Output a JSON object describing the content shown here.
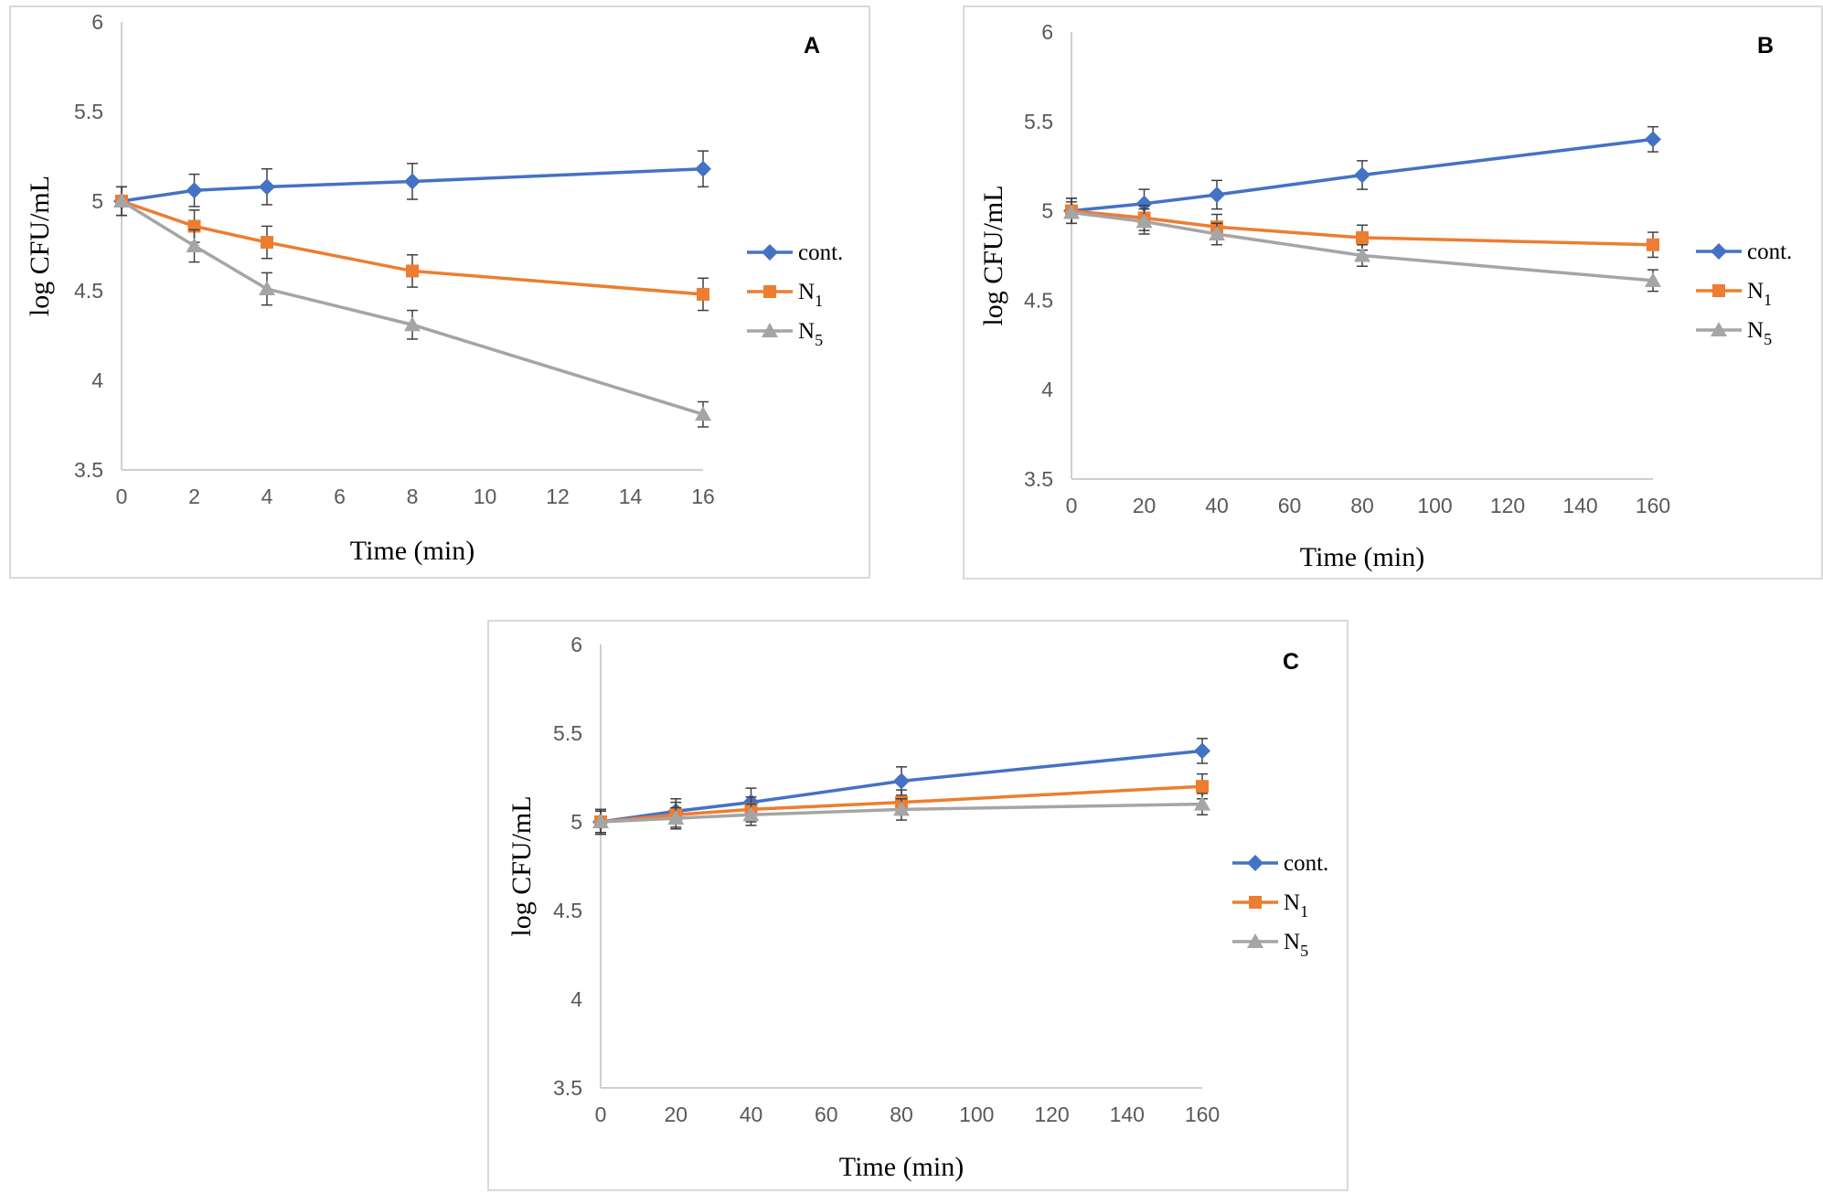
{
  "chart_data": [
    {
      "type": "line",
      "panel_label": "A",
      "xlabel": "Time (min)",
      "ylabel": "log CFU/mL",
      "ylim": [
        3.5,
        6
      ],
      "yticks": [
        "3.5",
        "4",
        "4.5",
        "5",
        "5.5",
        "6"
      ],
      "xticks": [
        "0",
        "2",
        "4",
        "6",
        "8",
        "10",
        "12",
        "14",
        "16"
      ],
      "xlim": [
        0,
        16
      ],
      "legend_position": "right",
      "grid": false,
      "series": [
        {
          "name": "cont.",
          "color": "#4472c4",
          "marker": "diamond",
          "x": [
            0,
            2,
            4,
            8,
            16
          ],
          "values": [
            5.0,
            5.06,
            5.08,
            5.11,
            5.18
          ],
          "error": [
            0.08,
            0.09,
            0.1,
            0.1,
            0.1
          ]
        },
        {
          "name": "N",
          "sub": "1",
          "color": "#ed7d31",
          "marker": "square",
          "x": [
            0,
            2,
            4,
            8,
            16
          ],
          "values": [
            5.0,
            4.86,
            4.77,
            4.61,
            4.48
          ],
          "error": [
            0.08,
            0.09,
            0.09,
            0.09,
            0.09
          ]
        },
        {
          "name": "N",
          "sub": "5",
          "color": "#a5a5a5",
          "marker": "triangle",
          "x": [
            0,
            2,
            4,
            8,
            16
          ],
          "values": [
            5.0,
            4.75,
            4.51,
            4.31,
            3.81
          ],
          "error": [
            0.08,
            0.09,
            0.09,
            0.08,
            0.07
          ]
        }
      ]
    },
    {
      "type": "line",
      "panel_label": "B",
      "xlabel": "Time (min)",
      "ylabel": "log CFU/mL",
      "ylim": [
        3.5,
        6
      ],
      "yticks": [
        "3.5",
        "4",
        "4.5",
        "5",
        "5.5",
        "6"
      ],
      "xticks": [
        "0",
        "20",
        "40",
        "60",
        "80",
        "100",
        "120",
        "140",
        "160"
      ],
      "xlim": [
        0,
        160
      ],
      "legend_position": "right",
      "grid": false,
      "series": [
        {
          "name": "cont.",
          "color": "#4472c4",
          "marker": "diamond",
          "x": [
            0,
            20,
            40,
            80,
            160
          ],
          "values": [
            5.0,
            5.04,
            5.09,
            5.2,
            5.4
          ],
          "error": [
            0.07,
            0.08,
            0.08,
            0.08,
            0.07
          ]
        },
        {
          "name": "N",
          "sub": "1",
          "color": "#ed7d31",
          "marker": "square",
          "x": [
            0,
            20,
            40,
            80,
            160
          ],
          "values": [
            5.0,
            4.96,
            4.91,
            4.85,
            4.81
          ],
          "error": [
            0.07,
            0.07,
            0.07,
            0.07,
            0.07
          ]
        },
        {
          "name": "N",
          "sub": "5",
          "color": "#a5a5a5",
          "marker": "triangle",
          "x": [
            0,
            20,
            40,
            80,
            160
          ],
          "values": [
            4.99,
            4.94,
            4.87,
            4.75,
            4.61
          ],
          "error": [
            0.06,
            0.07,
            0.06,
            0.06,
            0.06
          ]
        }
      ]
    },
    {
      "type": "line",
      "panel_label": "C",
      "xlabel": "Time (min)",
      "ylabel": "log CFU/mL",
      "ylim": [
        3.5,
        6
      ],
      "yticks": [
        "3.5",
        "4",
        "4.5",
        "5",
        "5.5",
        "6"
      ],
      "xticks": [
        "0",
        "20",
        "40",
        "60",
        "80",
        "100",
        "120",
        "140",
        "160"
      ],
      "xlim": [
        0,
        160
      ],
      "legend_position": "right",
      "grid": false,
      "series": [
        {
          "name": "cont.",
          "color": "#4472c4",
          "marker": "diamond",
          "x": [
            0,
            20,
            40,
            80,
            160
          ],
          "values": [
            5.0,
            5.06,
            5.11,
            5.23,
            5.4
          ],
          "error": [
            0.07,
            0.07,
            0.08,
            0.08,
            0.07
          ]
        },
        {
          "name": "N",
          "sub": "1",
          "color": "#ed7d31",
          "marker": "square",
          "x": [
            0,
            20,
            40,
            80,
            160
          ],
          "values": [
            5.0,
            5.04,
            5.07,
            5.11,
            5.2
          ],
          "error": [
            0.07,
            0.07,
            0.07,
            0.07,
            0.07
          ]
        },
        {
          "name": "N",
          "sub": "5",
          "color": "#a5a5a5",
          "marker": "triangle",
          "x": [
            0,
            20,
            40,
            80,
            160
          ],
          "values": [
            5.0,
            5.02,
            5.04,
            5.07,
            5.1
          ],
          "error": [
            0.06,
            0.06,
            0.06,
            0.06,
            0.06
          ]
        }
      ]
    }
  ]
}
